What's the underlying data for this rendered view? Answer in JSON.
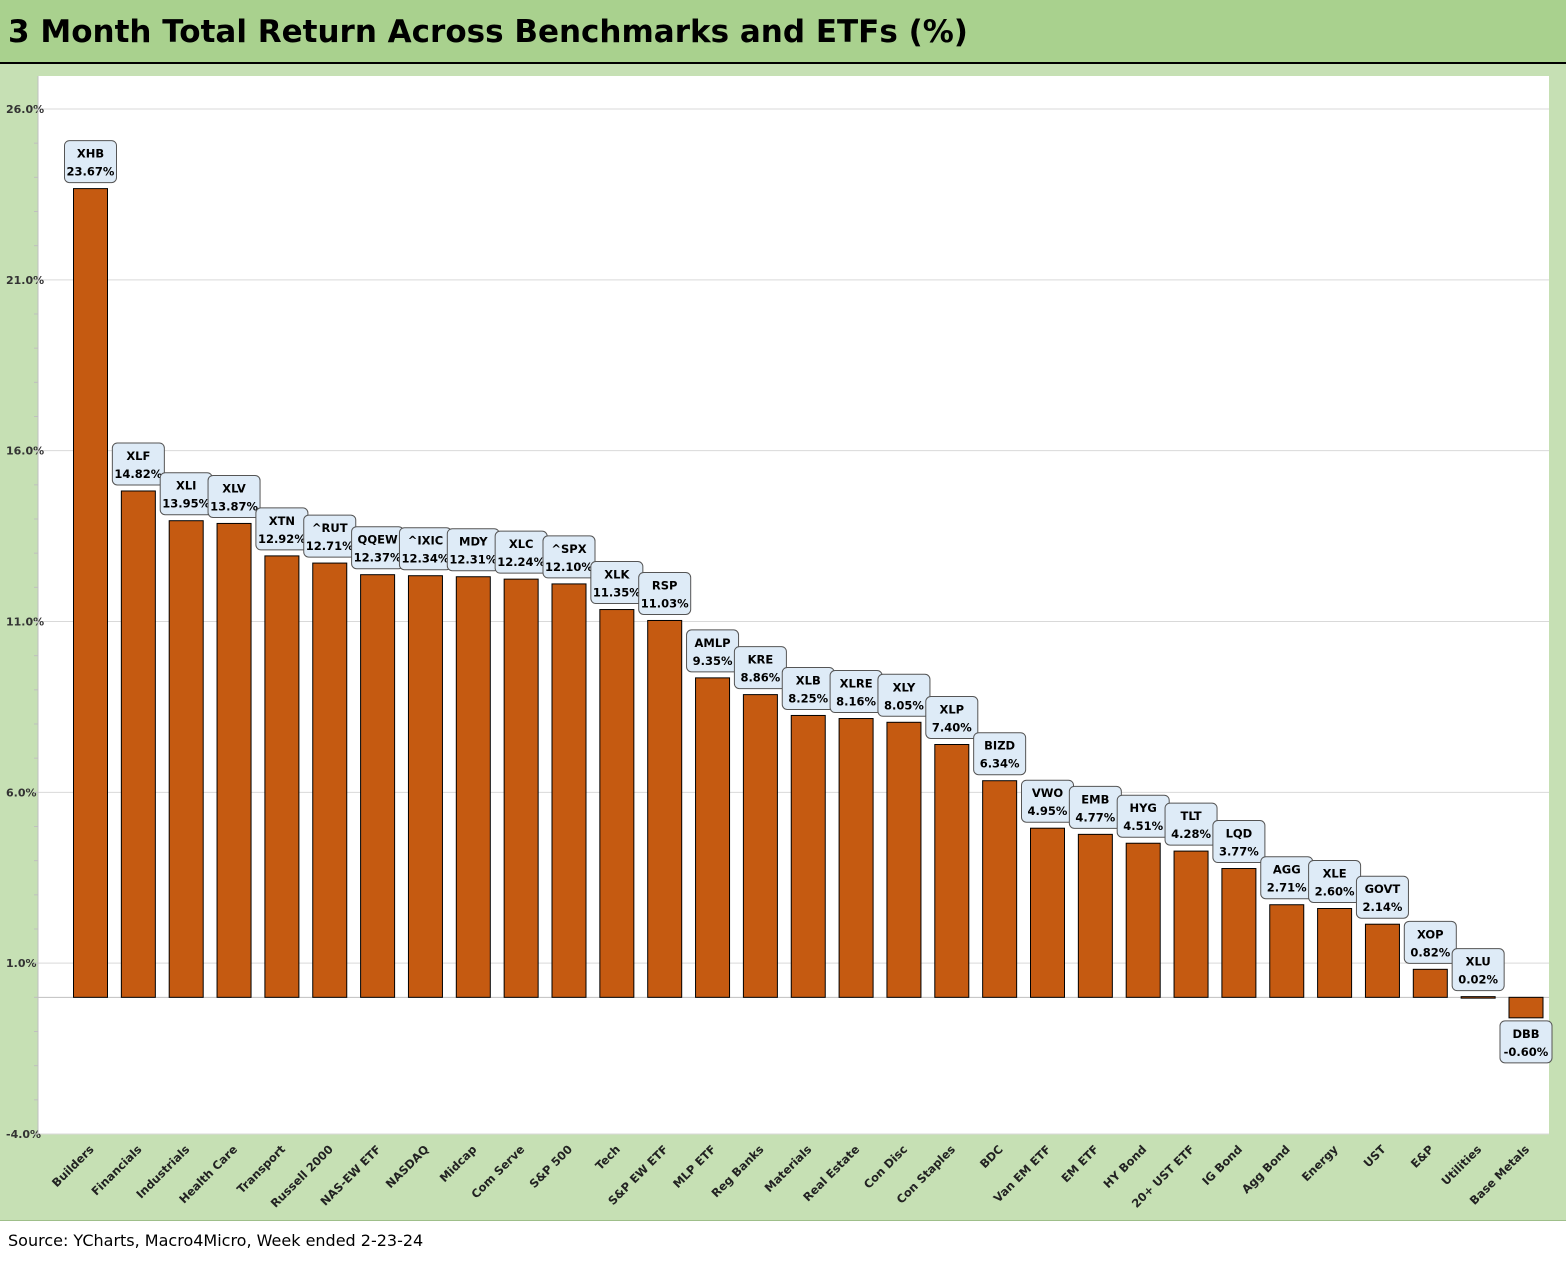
{
  "title": "3 Month Total Return Across Benchmarks and ETFs (%)",
  "source": "Source: YCharts, Macro4Micro, Week ended 2-23-24",
  "chart_data": {
    "type": "bar",
    "title": "3 Month Total Return Across Benchmarks and ETFs (%)",
    "xlabel": "",
    "ylabel": "",
    "ylim": [
      -4,
      26
    ],
    "yticks": [
      -4,
      1,
      6,
      11,
      16,
      21,
      26
    ],
    "ytick_labels": [
      "-4.0%",
      "1.0%",
      "6.0%",
      "11.0%",
      "16.0%",
      "21.0%",
      "26.0%"
    ],
    "grid": true,
    "legend": "none",
    "bar_color": "#c55a11",
    "label_box_color": "#deebf7",
    "categories": [
      "Builders",
      "Financials",
      "Industrials",
      "Health Care",
      "Transport",
      "Russell 2000",
      "NAS-EW ETF",
      "NASDAQ",
      "Midcap",
      "Com Serve",
      "S&P 500",
      "Tech",
      "S&P EW ETF",
      "MLP ETF",
      "Reg Banks",
      "Materials",
      "Real Estate",
      "Con Disc",
      "Con Staples",
      "BDC",
      "Van EM ETF",
      "EM ETF",
      "HY Bond",
      "20+ UST ETF",
      "IG Bond",
      "Agg Bond",
      "Energy",
      "UST",
      "E&P",
      "Utilities",
      "Base Metals"
    ],
    "tickers": [
      "XHB",
      "XLF",
      "XLI",
      "XLV",
      "XTN",
      "^RUT",
      "QQEW",
      "^IXIC",
      "MDY",
      "XLC",
      "^SPX",
      "XLK",
      "RSP",
      "AMLP",
      "KRE",
      "XLB",
      "XLRE",
      "XLY",
      "XLP",
      "BIZD",
      "VWO",
      "EMB",
      "HYG",
      "TLT",
      "LQD",
      "AGG",
      "XLE",
      "GOVT",
      "XOP",
      "XLU",
      "DBB"
    ],
    "values": [
      23.67,
      14.82,
      13.95,
      13.87,
      12.92,
      12.71,
      12.37,
      12.34,
      12.31,
      12.24,
      12.1,
      11.35,
      11.03,
      9.35,
      8.86,
      8.25,
      8.16,
      8.05,
      7.4,
      6.34,
      4.95,
      4.77,
      4.51,
      4.28,
      3.77,
      2.71,
      2.6,
      2.14,
      0.82,
      0.02,
      -0.6
    ],
    "value_labels": [
      "23.67%",
      "14.82%",
      "13.95%",
      "13.87%",
      "12.92%",
      "12.71%",
      "12.37%",
      "12.34%",
      "12.31%",
      "12.24%",
      "12.10%",
      "11.35%",
      "11.03%",
      "9.35%",
      "8.86%",
      "8.25%",
      "8.16%",
      "8.05%",
      "7.40%",
      "6.34%",
      "4.95%",
      "4.77%",
      "4.51%",
      "4.28%",
      "3.77%",
      "2.71%",
      "2.60%",
      "2.14%",
      "0.82%",
      "0.02%",
      "-0.60%"
    ]
  }
}
